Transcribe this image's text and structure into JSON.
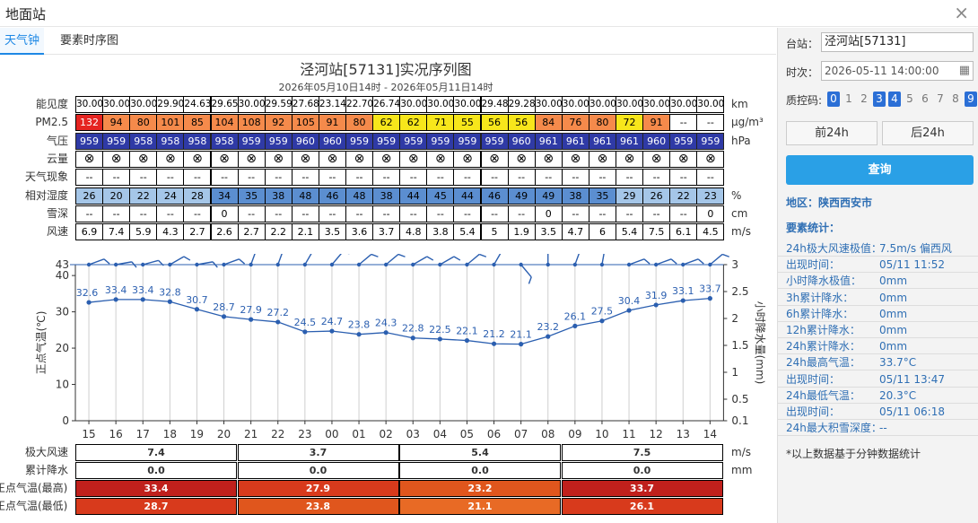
{
  "window": {
    "title": "地面站",
    "close_label": "×"
  },
  "tabs": [
    {
      "label": "天气钟"
    },
    {
      "label": "要素时序图"
    }
  ],
  "chart_data": {
    "type": "line",
    "title": "泾河站[57131]实况序列图",
    "subtitle": "2026年05月10日14时 - 2026年05月11日14时",
    "hours": [
      "15",
      "16",
      "17",
      "18",
      "19",
      "20",
      "21",
      "22",
      "23",
      "00",
      "01",
      "02",
      "03",
      "04",
      "05",
      "06",
      "07",
      "08",
      "09",
      "10",
      "11",
      "12",
      "13",
      "14"
    ],
    "ylabel_left": "正点气温(℃)",
    "ylabel_right": "小时降水量(mm)",
    "yleft_ticks": [
      0,
      10,
      20,
      30,
      40
    ],
    "yleft_top_label": "43",
    "yleft_range": [
      0,
      43
    ],
    "yright_ticks": [
      "0.1",
      "0.5",
      "1",
      "1.5",
      "2",
      "2.5",
      "3"
    ],
    "yright_range": [
      0.1,
      3
    ],
    "series": [
      {
        "values": [
          32.6,
          33.4,
          33.4,
          32.8,
          30.7,
          28.7,
          27.9,
          27.2,
          24.5,
          24.7,
          23.8,
          24.3,
          22.8,
          22.5,
          22.1,
          21.2,
          21.1,
          23.2,
          26.1,
          27.5,
          30.4,
          31.9,
          33.1,
          33.7
        ],
        "color": "#2b5fb0"
      }
    ],
    "wind_dir_deg": [
      250,
      260,
      255,
      240,
      260,
      250,
      200,
      200,
      210,
      220,
      230,
      230,
      240,
      240,
      230,
      210,
      320,
      180,
      200,
      190,
      250,
      250,
      250,
      230
    ],
    "table": {
      "visibility": {
        "label": "能见度",
        "unit": "km",
        "values": [
          "30.00",
          "30.00",
          "30.00",
          "29.90",
          "24.63",
          "29.65",
          "30.00",
          "29.59",
          "27.68",
          "23.14",
          "22.70",
          "26.74",
          "30.00",
          "30.00",
          "30.00",
          "29.48",
          "29.28",
          "30.00",
          "30.00",
          "30.00",
          "30.00",
          "30.00",
          "30.00",
          "30.00"
        ]
      },
      "pm25": {
        "label": "PM2.5",
        "unit": "μg/m³",
        "values": [
          "132",
          "94",
          "80",
          "101",
          "85",
          "104",
          "108",
          "92",
          "105",
          "91",
          "80",
          "62",
          "62",
          "71",
          "55",
          "56",
          "56",
          "84",
          "76",
          "80",
          "72",
          "91",
          "--",
          "--"
        ],
        "colors": [
          "#e52421",
          "#f58a4b",
          "#f58a4b",
          "#f58a4b",
          "#f58a4b",
          "#f58a4b",
          "#f58a4b",
          "#f58a4b",
          "#f58a4b",
          "#f58a4b",
          "#f58a4b",
          "#f7e61b",
          "#f7e61b",
          "#f7e61b",
          "#f7e61b",
          "#f7e61b",
          "#f7e61b",
          "#f58a4b",
          "#f58a4b",
          "#f58a4b",
          "#f7e61b",
          "#f58a4b",
          "#ffffff",
          "#ffffff"
        ]
      },
      "pressure": {
        "label": "气压",
        "unit": "hPa",
        "values": [
          "959",
          "959",
          "958",
          "958",
          "958",
          "958",
          "959",
          "959",
          "960",
          "960",
          "959",
          "959",
          "959",
          "959",
          "959",
          "959",
          "960",
          "961",
          "961",
          "961",
          "961",
          "960",
          "959",
          "959"
        ]
      },
      "cloud": {
        "label": "云量",
        "unit": "",
        "values": [
          "⊗",
          "⊗",
          "⊗",
          "⊗",
          "⊗",
          "⊗",
          "⊗",
          "⊗",
          "⊗",
          "⊗",
          "⊗",
          "⊗",
          "⊗",
          "⊗",
          "⊗",
          "⊗",
          "⊗",
          "⊗",
          "⊗",
          "⊗",
          "⊗",
          "⊗",
          "⊗",
          "⊗"
        ]
      },
      "weather": {
        "label": "天气现象",
        "unit": "",
        "values": [
          "--",
          "--",
          "--",
          "--",
          "--",
          "--",
          "--",
          "--",
          "--",
          "--",
          "--",
          "--",
          "--",
          "--",
          "--",
          "--",
          "--",
          "--",
          "--",
          "--",
          "--",
          "--",
          "--",
          "--"
        ]
      },
      "humidity": {
        "label": "相对湿度",
        "unit": "%",
        "values": [
          "26",
          "20",
          "22",
          "24",
          "28",
          "34",
          "35",
          "38",
          "48",
          "46",
          "48",
          "38",
          "44",
          "45",
          "44",
          "46",
          "49",
          "49",
          "38",
          "35",
          "29",
          "26",
          "22",
          "23"
        ],
        "colors": [
          "#a5c6e8",
          "#a5c6e8",
          "#a5c6e8",
          "#a5c6e8",
          "#a5c6e8",
          "#5b8ed0",
          "#5b8ed0",
          "#5b8ed0",
          "#5b8ed0",
          "#5b8ed0",
          "#5b8ed0",
          "#5b8ed0",
          "#5b8ed0",
          "#5b8ed0",
          "#5b8ed0",
          "#5b8ed0",
          "#5b8ed0",
          "#5b8ed0",
          "#5b8ed0",
          "#5b8ed0",
          "#a5c6e8",
          "#a5c6e8",
          "#a5c6e8",
          "#a5c6e8"
        ]
      },
      "snow": {
        "label": "雪深",
        "unit": "cm",
        "values": [
          "--",
          "--",
          "--",
          "--",
          "--",
          "0",
          "--",
          "--",
          "--",
          "--",
          "--",
          "--",
          "--",
          "--",
          "--",
          "--",
          "--",
          "0",
          "--",
          "--",
          "--",
          "--",
          "--",
          "0"
        ]
      },
      "wind": {
        "label": "风速",
        "unit": "m/s",
        "values": [
          "6.9",
          "7.4",
          "5.9",
          "4.3",
          "2.7",
          "2.6",
          "2.7",
          "2.2",
          "2.1",
          "3.5",
          "3.6",
          "3.7",
          "4.8",
          "3.8",
          "5.4",
          "5",
          "1.9",
          "3.5",
          "4.7",
          "6",
          "5.4",
          "7.5",
          "6.1",
          "4.5"
        ]
      }
    },
    "summary": {
      "max_wind": {
        "label": "极大风速",
        "unit": "m/s",
        "values": [
          "7.4",
          "3.7",
          "5.4",
          "7.5"
        ],
        "colors": [
          "#ffffff",
          "#ffffff",
          "#ffffff",
          "#ffffff"
        ]
      },
      "precip": {
        "label": "累计降水",
        "unit": "mm",
        "values": [
          "0.0",
          "0.0",
          "0.0",
          "0.0"
        ],
        "colors": [
          "#ffffff",
          "#ffffff",
          "#ffffff",
          "#ffffff"
        ]
      },
      "tmax": {
        "label": "正点气温(最高)",
        "unit": "",
        "values": [
          "33.4",
          "27.9",
          "23.2",
          "33.7"
        ],
        "colors": [
          "#c0201c",
          "#d83a1c",
          "#e0561d",
          "#c0201c"
        ]
      },
      "tmin": {
        "label": "正点气温(最低)",
        "unit": "",
        "values": [
          "28.7",
          "23.8",
          "21.1",
          "26.1"
        ],
        "colors": [
          "#d83a1c",
          "#e0561d",
          "#e86a25",
          "#d83a1c"
        ]
      }
    }
  },
  "panel": {
    "station_label": "台站：",
    "station_value": "泾河站[57131]",
    "time_label": "时次：",
    "time_value": "2026-05-11 14:00:00",
    "qc_label": "质控码:",
    "qc_codes": [
      {
        "code": "0",
        "on": true
      },
      {
        "code": "1",
        "on": false
      },
      {
        "code": "2",
        "on": false
      },
      {
        "code": "3",
        "on": true
      },
      {
        "code": "4",
        "on": true
      },
      {
        "code": "5",
        "on": false
      },
      {
        "code": "6",
        "on": false
      },
      {
        "code": "7",
        "on": false
      },
      {
        "code": "8",
        "on": false
      },
      {
        "code": "9",
        "on": true
      }
    ],
    "prev_button": "前24h",
    "next_button": "后24h",
    "query_button": "查询",
    "region": "地区：陕西西安市",
    "stats_title": "要素统计：",
    "stats": [
      {
        "k": "24h极大风速极值：",
        "v": "7.5m/s  偏西风"
      },
      {
        "k": "出现时间：",
        "v": "05/11 11:52"
      },
      {
        "k": "小时降水极值：",
        "v": "0mm"
      },
      {
        "k": "3h累计降水：",
        "v": "0mm"
      },
      {
        "k": "6h累计降水：",
        "v": "0mm"
      },
      {
        "k": "12h累计降水：",
        "v": "0mm"
      },
      {
        "k": "24h累计降水：",
        "v": "0mm"
      },
      {
        "k": "24h最高气温：",
        "v": "33.7°C"
      },
      {
        "k": "出现时间：",
        "v": "05/11 13:47"
      },
      {
        "k": "24h最低气温：",
        "v": "20.3°C"
      },
      {
        "k": "出现时间：",
        "v": "05/11 06:18"
      },
      {
        "k": "24h最大积雪深度：",
        "v": "--"
      }
    ],
    "footnote": "*以上数据基于分钟数据统计"
  }
}
